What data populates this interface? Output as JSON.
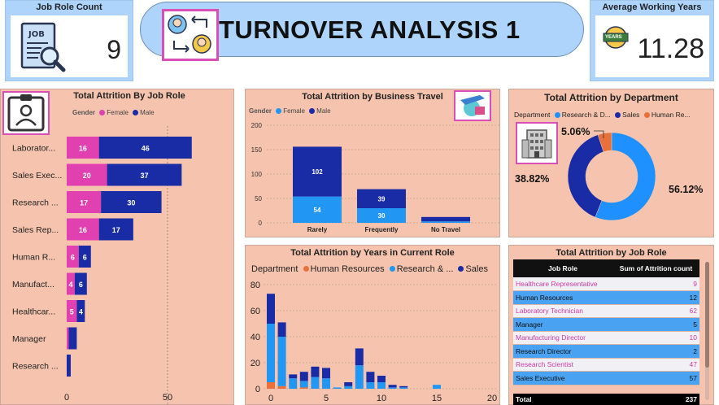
{
  "kpi_job_role": {
    "title": "Job Role Count",
    "value": "9"
  },
  "kpi_working_years": {
    "title": "Average Working Years",
    "value": "11.28",
    "badge": "YEARS"
  },
  "header": {
    "title": "TURNOVER ANALYSIS 1"
  },
  "job_role_chart": {
    "title": "Total Attrition By Job Role",
    "legend_label": "Gender",
    "legend": [
      "Female",
      "Male"
    ],
    "categories": [
      "Laborator...",
      "Sales Exec...",
      "Research ...",
      "Sales Rep...",
      "Human R...",
      "Manufact...",
      "Healthcar...",
      "Manager",
      "Research ..."
    ],
    "female": [
      16,
      20,
      17,
      16,
      6,
      4,
      5,
      1,
      0
    ],
    "male": [
      46,
      37,
      30,
      17,
      6,
      6,
      4,
      4,
      2
    ],
    "female_labels": [
      "16",
      "20",
      "17",
      "16",
      "6",
      "4",
      "5",
      "",
      ""
    ],
    "male_labels": [
      "46",
      "37",
      "30",
      "17",
      "6",
      "6",
      "4",
      "",
      ""
    ],
    "x_ticks": [
      "0",
      "50"
    ],
    "colors": {
      "female": "#e040b0",
      "male": "#1a2ba6"
    }
  },
  "business_travel_chart": {
    "title": "Total Attrition by Business Travel",
    "legend_label": "Gender",
    "legend": [
      "Female",
      "Male"
    ],
    "categories": [
      "Rarely",
      "Frequently",
      "No Travel"
    ],
    "female": [
      54,
      30,
      3
    ],
    "male": [
      102,
      39,
      9
    ],
    "female_labels": [
      "54",
      "30",
      ""
    ],
    "male_labels": [
      "102",
      "39",
      ""
    ],
    "y_ticks": [
      "0",
      "50",
      "100",
      "150",
      "200"
    ],
    "colors": {
      "female": "#2196f3",
      "male": "#1a2ba6"
    }
  },
  "department_chart": {
    "title": "Total Attrition by Department",
    "legend_label": "Department",
    "legend": [
      "Research & D...",
      "Sales",
      "Human Re..."
    ],
    "values": [
      56.12,
      38.82,
      5.06
    ],
    "labels": [
      "56.12%",
      "38.82%",
      "5.06%"
    ],
    "colors": [
      "#1e90ff",
      "#1a2ba6",
      "#e8703a"
    ]
  },
  "years_role_chart": {
    "title": "Total Attrition by Years in Current Role",
    "legend_label": "Department",
    "legend": [
      "Human Resources",
      "Research & ...",
      "Sales"
    ],
    "y_ticks": [
      "0",
      "20",
      "40",
      "60",
      "80"
    ],
    "x_ticks": [
      "0",
      "5",
      "10",
      "15",
      "20"
    ],
    "hr": [
      5,
      2,
      0,
      1,
      0,
      0,
      0,
      0,
      0,
      0,
      0,
      0,
      0,
      0,
      0,
      0
    ],
    "rd": [
      45,
      38,
      8,
      5,
      9,
      8,
      1,
      2,
      18,
      5,
      5,
      1,
      1,
      0,
      0,
      3
    ],
    "sales": [
      23,
      11,
      3,
      7,
      8,
      8,
      0,
      3,
      13,
      8,
      5,
      2,
      1,
      0,
      0,
      0
    ],
    "colors": {
      "hr": "#e8703a",
      "rd": "#2196f3",
      "sales": "#1a2ba6"
    }
  },
  "job_role_table": {
    "title": "Total Attrition by Job Role",
    "columns": [
      "Job Role",
      "Sum of Attrition count"
    ],
    "rows": [
      [
        "Healthcare Representative",
        "9"
      ],
      [
        "Human Resources",
        "12"
      ],
      [
        "Laboratory Technician",
        "62"
      ],
      [
        "Manager",
        "5"
      ],
      [
        "Manufacturing Director",
        "10"
      ],
      [
        "Research Director",
        "2"
      ],
      [
        "Research Scientist",
        "47"
      ],
      [
        "Sales Executive",
        "57"
      ]
    ],
    "total_label": "Total",
    "total_value": "237"
  }
}
